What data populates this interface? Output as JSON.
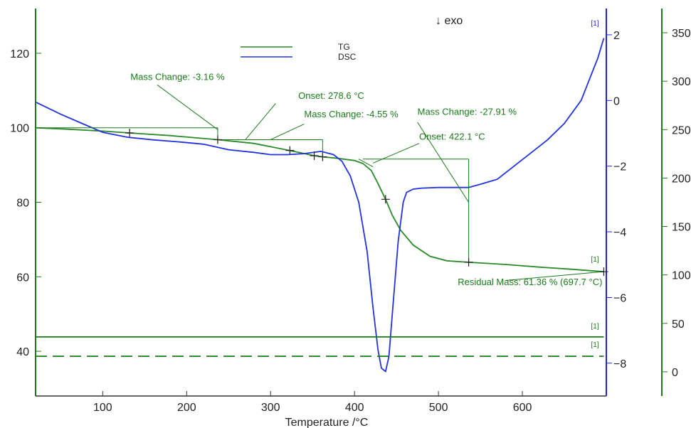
{
  "chart_data": {
    "type": "line",
    "xlabel": "Temperature /°C",
    "exo_label": "↓ exo",
    "xlim": [
      20,
      700
    ],
    "x_ticks": [
      100,
      200,
      300,
      400,
      500,
      600
    ],
    "axes": {
      "tg_left": {
        "ylim": [
          28,
          132
        ],
        "ticks": [
          40,
          60,
          80,
          100,
          120
        ],
        "color": "#1a7a1a"
      },
      "dsc_right": {
        "ylim": [
          -9,
          2.8
        ],
        "ticks": [
          2,
          0,
          -2,
          -4,
          -6,
          -8
        ],
        "color": "#2222dd"
      },
      "temp_right": {
        "ylim": [
          -25,
          375
        ],
        "ticks": [
          0,
          50,
          100,
          150,
          200,
          250,
          300,
          350
        ],
        "color": "#1a7a1a"
      }
    },
    "legend": {
      "placement": "top-center",
      "entries": [
        "TG",
        "DSC"
      ]
    },
    "series": [
      {
        "name": "TG",
        "axis": "tg_left",
        "color": "#2a8a2a",
        "x": [
          20,
          60,
          100,
          132,
          180,
          237,
          280,
          323,
          352,
          362,
          380,
          400,
          410,
          420,
          428,
          437,
          445,
          455,
          470,
          490,
          510,
          536,
          580,
          620,
          660,
          697
        ],
        "y": [
          100,
          99.6,
          99.1,
          98.6,
          97.9,
          96.8,
          95.8,
          93.9,
          92.5,
          92.2,
          91.8,
          91.2,
          90.4,
          88.5,
          85.0,
          80.8,
          76.5,
          72.5,
          68.5,
          65.5,
          64.3,
          63.9,
          63.3,
          62.6,
          62.0,
          61.36
        ]
      },
      {
        "name": "DSC",
        "axis": "dsc_right",
        "color": "#2233dd",
        "x": [
          20,
          50,
          80,
          100,
          130,
          160,
          190,
          220,
          250,
          280,
          300,
          320,
          340,
          360,
          375,
          385,
          395,
          405,
          415,
          422,
          428,
          432,
          437,
          441,
          446,
          452,
          458,
          462,
          470,
          480,
          500,
          520,
          536,
          550,
          570,
          590,
          610,
          630,
          650,
          670,
          690,
          697
        ],
        "y": [
          -0.05,
          -0.42,
          -0.75,
          -0.97,
          -1.12,
          -1.2,
          -1.26,
          -1.33,
          -1.5,
          -1.58,
          -1.65,
          -1.65,
          -1.62,
          -1.55,
          -1.65,
          -1.85,
          -2.3,
          -3.1,
          -4.6,
          -6.3,
          -7.6,
          -8.15,
          -8.25,
          -7.8,
          -6.2,
          -4.3,
          -3.1,
          -2.8,
          -2.7,
          -2.67,
          -2.65,
          -2.65,
          -2.65,
          -2.55,
          -2.4,
          -2.0,
          -1.6,
          -1.2,
          -0.7,
          0.0,
          1.3,
          1.9
        ]
      },
      {
        "name": "Temperature",
        "axis": "temp_right",
        "color": "#1a7a1a",
        "dash": "solid",
        "x": [
          20,
          697
        ],
        "y": [
          36,
          36
        ]
      },
      {
        "name": "Temperature reference",
        "axis": "temp_right",
        "color": "#1a7a1a",
        "dash": "dashed",
        "x": [
          20,
          697
        ],
        "y": [
          16,
          16
        ]
      }
    ],
    "annotations": [
      {
        "text": "Mass Change: -3.16 %",
        "x": 133,
        "y": 112.8
      },
      {
        "text": "Onset: 278.6 °C",
        "x": 333,
        "y": 107.8
      },
      {
        "text": "Mass Change: -4.55 %",
        "x": 340,
        "y": 102.8
      },
      {
        "text": "Mass Change: -27.91 %",
        "x": 475,
        "y": 103.5
      },
      {
        "text": "Onset: 422.1 °C",
        "x": 477,
        "y": 96.8
      },
      {
        "text": "Residual Mass: 61.36 % (697.7 °C)",
        "x": 523,
        "y": 57.8
      }
    ],
    "curve_tags": [
      "[1]",
      "[1]",
      "[1]",
      "[1]"
    ]
  }
}
